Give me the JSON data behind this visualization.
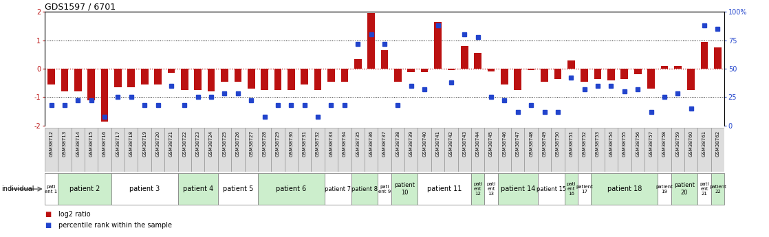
{
  "title": "GDS1597 / 6701",
  "samples": [
    "GSM38712",
    "GSM38713",
    "GSM38714",
    "GSM38715",
    "GSM38716",
    "GSM38717",
    "GSM38718",
    "GSM38719",
    "GSM38720",
    "GSM38721",
    "GSM38722",
    "GSM38723",
    "GSM38724",
    "GSM38725",
    "GSM38726",
    "GSM38727",
    "GSM38728",
    "GSM38729",
    "GSM38730",
    "GSM38731",
    "GSM38732",
    "GSM38733",
    "GSM38734",
    "GSM38735",
    "GSM38736",
    "GSM38737",
    "GSM38738",
    "GSM38739",
    "GSM38740",
    "GSM38741",
    "GSM38742",
    "GSM38743",
    "GSM38744",
    "GSM38745",
    "GSM38746",
    "GSM38747",
    "GSM38748",
    "GSM38749",
    "GSM38750",
    "GSM38751",
    "GSM38752",
    "GSM38753",
    "GSM38754",
    "GSM38755",
    "GSM38756",
    "GSM38757",
    "GSM38758",
    "GSM38759",
    "GSM38760",
    "GSM38761",
    "GSM38762"
  ],
  "log2_ratio": [
    -0.55,
    -0.8,
    -0.8,
    -1.1,
    -1.85,
    -0.65,
    -0.65,
    -0.55,
    -0.55,
    -0.15,
    -0.75,
    -0.75,
    -0.8,
    -0.45,
    -0.45,
    -0.7,
    -0.75,
    -0.75,
    -0.75,
    -0.55,
    -0.75,
    -0.45,
    -0.45,
    0.35,
    1.95,
    0.65,
    -0.45,
    -0.12,
    -0.12,
    1.65,
    -0.05,
    0.8,
    0.55,
    -0.1,
    -0.55,
    -0.75,
    -0.05,
    -0.45,
    -0.35,
    0.3,
    -0.45,
    -0.35,
    -0.4,
    -0.35,
    -0.2,
    -0.7,
    0.1,
    0.1,
    -0.75,
    0.95,
    0.75
  ],
  "percentile": [
    18,
    18,
    22,
    22,
    8,
    25,
    25,
    18,
    18,
    35,
    18,
    25,
    25,
    28,
    28,
    22,
    8,
    18,
    18,
    18,
    8,
    18,
    18,
    72,
    80,
    72,
    18,
    35,
    32,
    88,
    38,
    80,
    78,
    25,
    22,
    12,
    18,
    12,
    12,
    42,
    32,
    35,
    35,
    30,
    32,
    12,
    25,
    28,
    15,
    88,
    85
  ],
  "patients": [
    {
      "label": "pati\nent 1",
      "start": 0,
      "end": 0,
      "color": "white"
    },
    {
      "label": "patient 2",
      "start": 1,
      "end": 4,
      "color": "#cceecc"
    },
    {
      "label": "patient 3",
      "start": 5,
      "end": 9,
      "color": "white"
    },
    {
      "label": "patient 4",
      "start": 10,
      "end": 12,
      "color": "#cceecc"
    },
    {
      "label": "patient 5",
      "start": 13,
      "end": 15,
      "color": "white"
    },
    {
      "label": "patient 6",
      "start": 16,
      "end": 20,
      "color": "#cceecc"
    },
    {
      "label": "patient 7",
      "start": 21,
      "end": 22,
      "color": "white"
    },
    {
      "label": "patient 8",
      "start": 23,
      "end": 24,
      "color": "#cceecc"
    },
    {
      "label": "pati\nent 9",
      "start": 25,
      "end": 25,
      "color": "white"
    },
    {
      "label": "patient\n10",
      "start": 26,
      "end": 27,
      "color": "#cceecc"
    },
    {
      "label": "patient 11",
      "start": 28,
      "end": 31,
      "color": "white"
    },
    {
      "label": "pati\nent\n12",
      "start": 32,
      "end": 32,
      "color": "#cceecc"
    },
    {
      "label": "pati\nent\n13",
      "start": 33,
      "end": 33,
      "color": "white"
    },
    {
      "label": "patient 14",
      "start": 34,
      "end": 36,
      "color": "#cceecc"
    },
    {
      "label": "patient 15",
      "start": 37,
      "end": 38,
      "color": "white"
    },
    {
      "label": "pati\nent\n16",
      "start": 39,
      "end": 39,
      "color": "#cceecc"
    },
    {
      "label": "patient\n17",
      "start": 40,
      "end": 40,
      "color": "white"
    },
    {
      "label": "patient 18",
      "start": 41,
      "end": 45,
      "color": "#cceecc"
    },
    {
      "label": "patient\n19",
      "start": 46,
      "end": 46,
      "color": "white"
    },
    {
      "label": "patient\n20",
      "start": 47,
      "end": 48,
      "color": "#cceecc"
    },
    {
      "label": "pati\nent\n21",
      "start": 49,
      "end": 49,
      "color": "white"
    },
    {
      "label": "patient\n22",
      "start": 50,
      "end": 50,
      "color": "#cceecc"
    }
  ],
  "bar_color": "#bb1111",
  "dot_color": "#2244cc",
  "ylim": [
    -2.0,
    2.0
  ],
  "yticks_left": [
    -2,
    -1,
    0,
    1,
    2
  ],
  "yticks_right": [
    0,
    25,
    50,
    75,
    100
  ],
  "hline_black": [
    1.0,
    -1.0
  ],
  "hline_red": 0.0,
  "legend": [
    {
      "color": "#bb1111",
      "label": "log2 ratio"
    },
    {
      "color": "#2244cc",
      "label": "percentile rank within the sample"
    }
  ]
}
